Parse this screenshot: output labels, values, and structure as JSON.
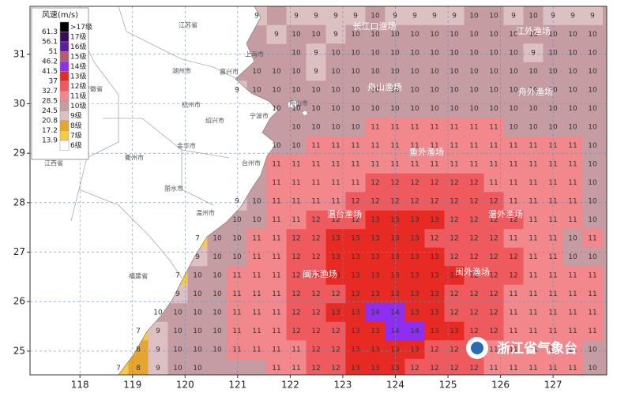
{
  "map": {
    "xlim": [
      117.05,
      128.02
    ],
    "ylim": [
      24.52,
      31.97
    ],
    "xticks": [
      118,
      119,
      120,
      121,
      122,
      123,
      124,
      125,
      126,
      127
    ],
    "yticks": [
      25,
      26,
      27,
      28,
      29,
      30,
      31
    ],
    "grid": true,
    "sea_color": "#c49ca2",
    "land_color": "#ffffff",
    "legend": {
      "title": "风速(m/s)",
      "levels": [
        {
          "label": ">17级",
          "color": "#000000"
        },
        {
          "value": 17,
          "label": "17级",
          "color": "#3a0a5c"
        },
        {
          "value": 16,
          "label": "16级",
          "color": "#5c1ea0"
        },
        {
          "value": 15,
          "label": "15级",
          "color": "#b85a6e"
        },
        {
          "value": 14,
          "label": "14级",
          "color": "#8d2ef0"
        },
        {
          "value": 13,
          "label": "13级",
          "color": "#e82a24"
        },
        {
          "value": 12,
          "label": "12级",
          "color": "#ef5a5e"
        },
        {
          "value": 11,
          "label": "11级",
          "color": "#f2888c"
        },
        {
          "value": 10,
          "label": "10级",
          "color": "#c49ca2"
        },
        {
          "value": 9,
          "label": "9级",
          "color": "#dcc0c2"
        },
        {
          "value": 8,
          "label": "8级",
          "color": "#e6a531"
        },
        {
          "value": 7,
          "label": "7级",
          "color": "#f7c948"
        },
        {
          "value": 6,
          "label": "6级",
          "color": "#ffffff"
        }
      ],
      "thresholds": [
        61.3,
        56.1,
        51.0,
        46.2,
        41.5,
        37.0,
        32.7,
        28.5,
        24.5,
        20.8,
        17.2,
        13.9
      ]
    },
    "places": [
      "江苏省",
      "上海市",
      "湖州市",
      "嘉兴市",
      "安徽省",
      "杭州市",
      "舟山市",
      "绍兴市",
      "宁波市",
      "金华市",
      "衢州市",
      "台州市",
      "丽水市",
      "江西省",
      "温州市",
      "福建省"
    ],
    "fishing_grounds": [
      "长江口渔场",
      "江外渔场",
      "舟山渔场",
      "舟外渔场",
      "鱼外渔场",
      "温台渔场",
      "温外渔场",
      "闽东渔场",
      "闽外渔场"
    ],
    "logo": "浙江省气象台",
    "wind_grid": [
      [
        9,
        null,
        9,
        9,
        9,
        9,
        10,
        9,
        9,
        9,
        9,
        10,
        10,
        9,
        10,
        9,
        9,
        9
      ],
      [
        9,
        10,
        10,
        9,
        10,
        10,
        10,
        10,
        10,
        10,
        10,
        10,
        10,
        10,
        10,
        10,
        10
      ],
      [
        10,
        9,
        10,
        10,
        10,
        10,
        10,
        10,
        10,
        10,
        10,
        10,
        9,
        10,
        10,
        10
      ],
      [
        10,
        10,
        10,
        9,
        10,
        10,
        10,
        10,
        10,
        10,
        10,
        10,
        10,
        10,
        10,
        10,
        10,
        10
      ],
      [
        9,
        10,
        10,
        10,
        10,
        10,
        10,
        10,
        10,
        10,
        10,
        10,
        10,
        10,
        10,
        10,
        10,
        10,
        10
      ],
      [
        10,
        10,
        10,
        10,
        10,
        10,
        10,
        10,
        10,
        10,
        10,
        10,
        10,
        10,
        10,
        10,
        10
      ],
      [
        10,
        10,
        10,
        10,
        11,
        11,
        11,
        11,
        11,
        11,
        11,
        10,
        10,
        10,
        10,
        10
      ],
      [
        10,
        10,
        11,
        11,
        11,
        11,
        11,
        11,
        11,
        11,
        11,
        11,
        11,
        11,
        11,
        11,
        10
      ],
      [
        11,
        11,
        11,
        11,
        11,
        11,
        11,
        11,
        11,
        11,
        11,
        11,
        11,
        11,
        11,
        11,
        10
      ],
      [
        11,
        11,
        11,
        11,
        11,
        12,
        12,
        12,
        12,
        12,
        12,
        11,
        11,
        11,
        11,
        11,
        10
      ],
      [
        9,
        10,
        11,
        11,
        11,
        11,
        12,
        12,
        12,
        12,
        12,
        12,
        12,
        12,
        11,
        11,
        11,
        11,
        10
      ],
      [
        10,
        10,
        11,
        11,
        12,
        12,
        12,
        13,
        13,
        13,
        13,
        12,
        12,
        12,
        12,
        11,
        11,
        11,
        10
      ],
      [
        7,
        10,
        10,
        11,
        11,
        12,
        12,
        13,
        13,
        13,
        13,
        13,
        12,
        12,
        12,
        12,
        11,
        11,
        11,
        10,
        11
      ],
      [
        9,
        10,
        10,
        11,
        11,
        12,
        12,
        13,
        13,
        13,
        13,
        13,
        13,
        12,
        12,
        12,
        12,
        11,
        11,
        10,
        10
      ],
      [
        7,
        10,
        10,
        11,
        11,
        11,
        12,
        12,
        13,
        13,
        13,
        13,
        13,
        13,
        13,
        12,
        12,
        12,
        11,
        11,
        11,
        11
      ],
      [
        9,
        10,
        10,
        11,
        11,
        11,
        12,
        12,
        12,
        13,
        13,
        13,
        13,
        13,
        12,
        12,
        12,
        11,
        11,
        11,
        11,
        11
      ],
      [
        10,
        10,
        10,
        10,
        11,
        11,
        11,
        12,
        12,
        13,
        13,
        14,
        14,
        13,
        13,
        12,
        12,
        12,
        11,
        11,
        11,
        11,
        11
      ],
      [
        7,
        9,
        10,
        10,
        10,
        11,
        11,
        11,
        12,
        12,
        12,
        13,
        13,
        14,
        14,
        13,
        13,
        12,
        12,
        11,
        11,
        11,
        11,
        11
      ],
      [
        8,
        9,
        10,
        10,
        10,
        11,
        11,
        11,
        11,
        12,
        12,
        13,
        13,
        13,
        13,
        12,
        12,
        12,
        11,
        11,
        11,
        11,
        11,
        10
      ],
      [
        7,
        8,
        9,
        10,
        10,
        null,
        null,
        null,
        11,
        11,
        12,
        12,
        13,
        13,
        13,
        12,
        12,
        12,
        12,
        11,
        11,
        11,
        11,
        11,
        10
      ]
    ]
  }
}
